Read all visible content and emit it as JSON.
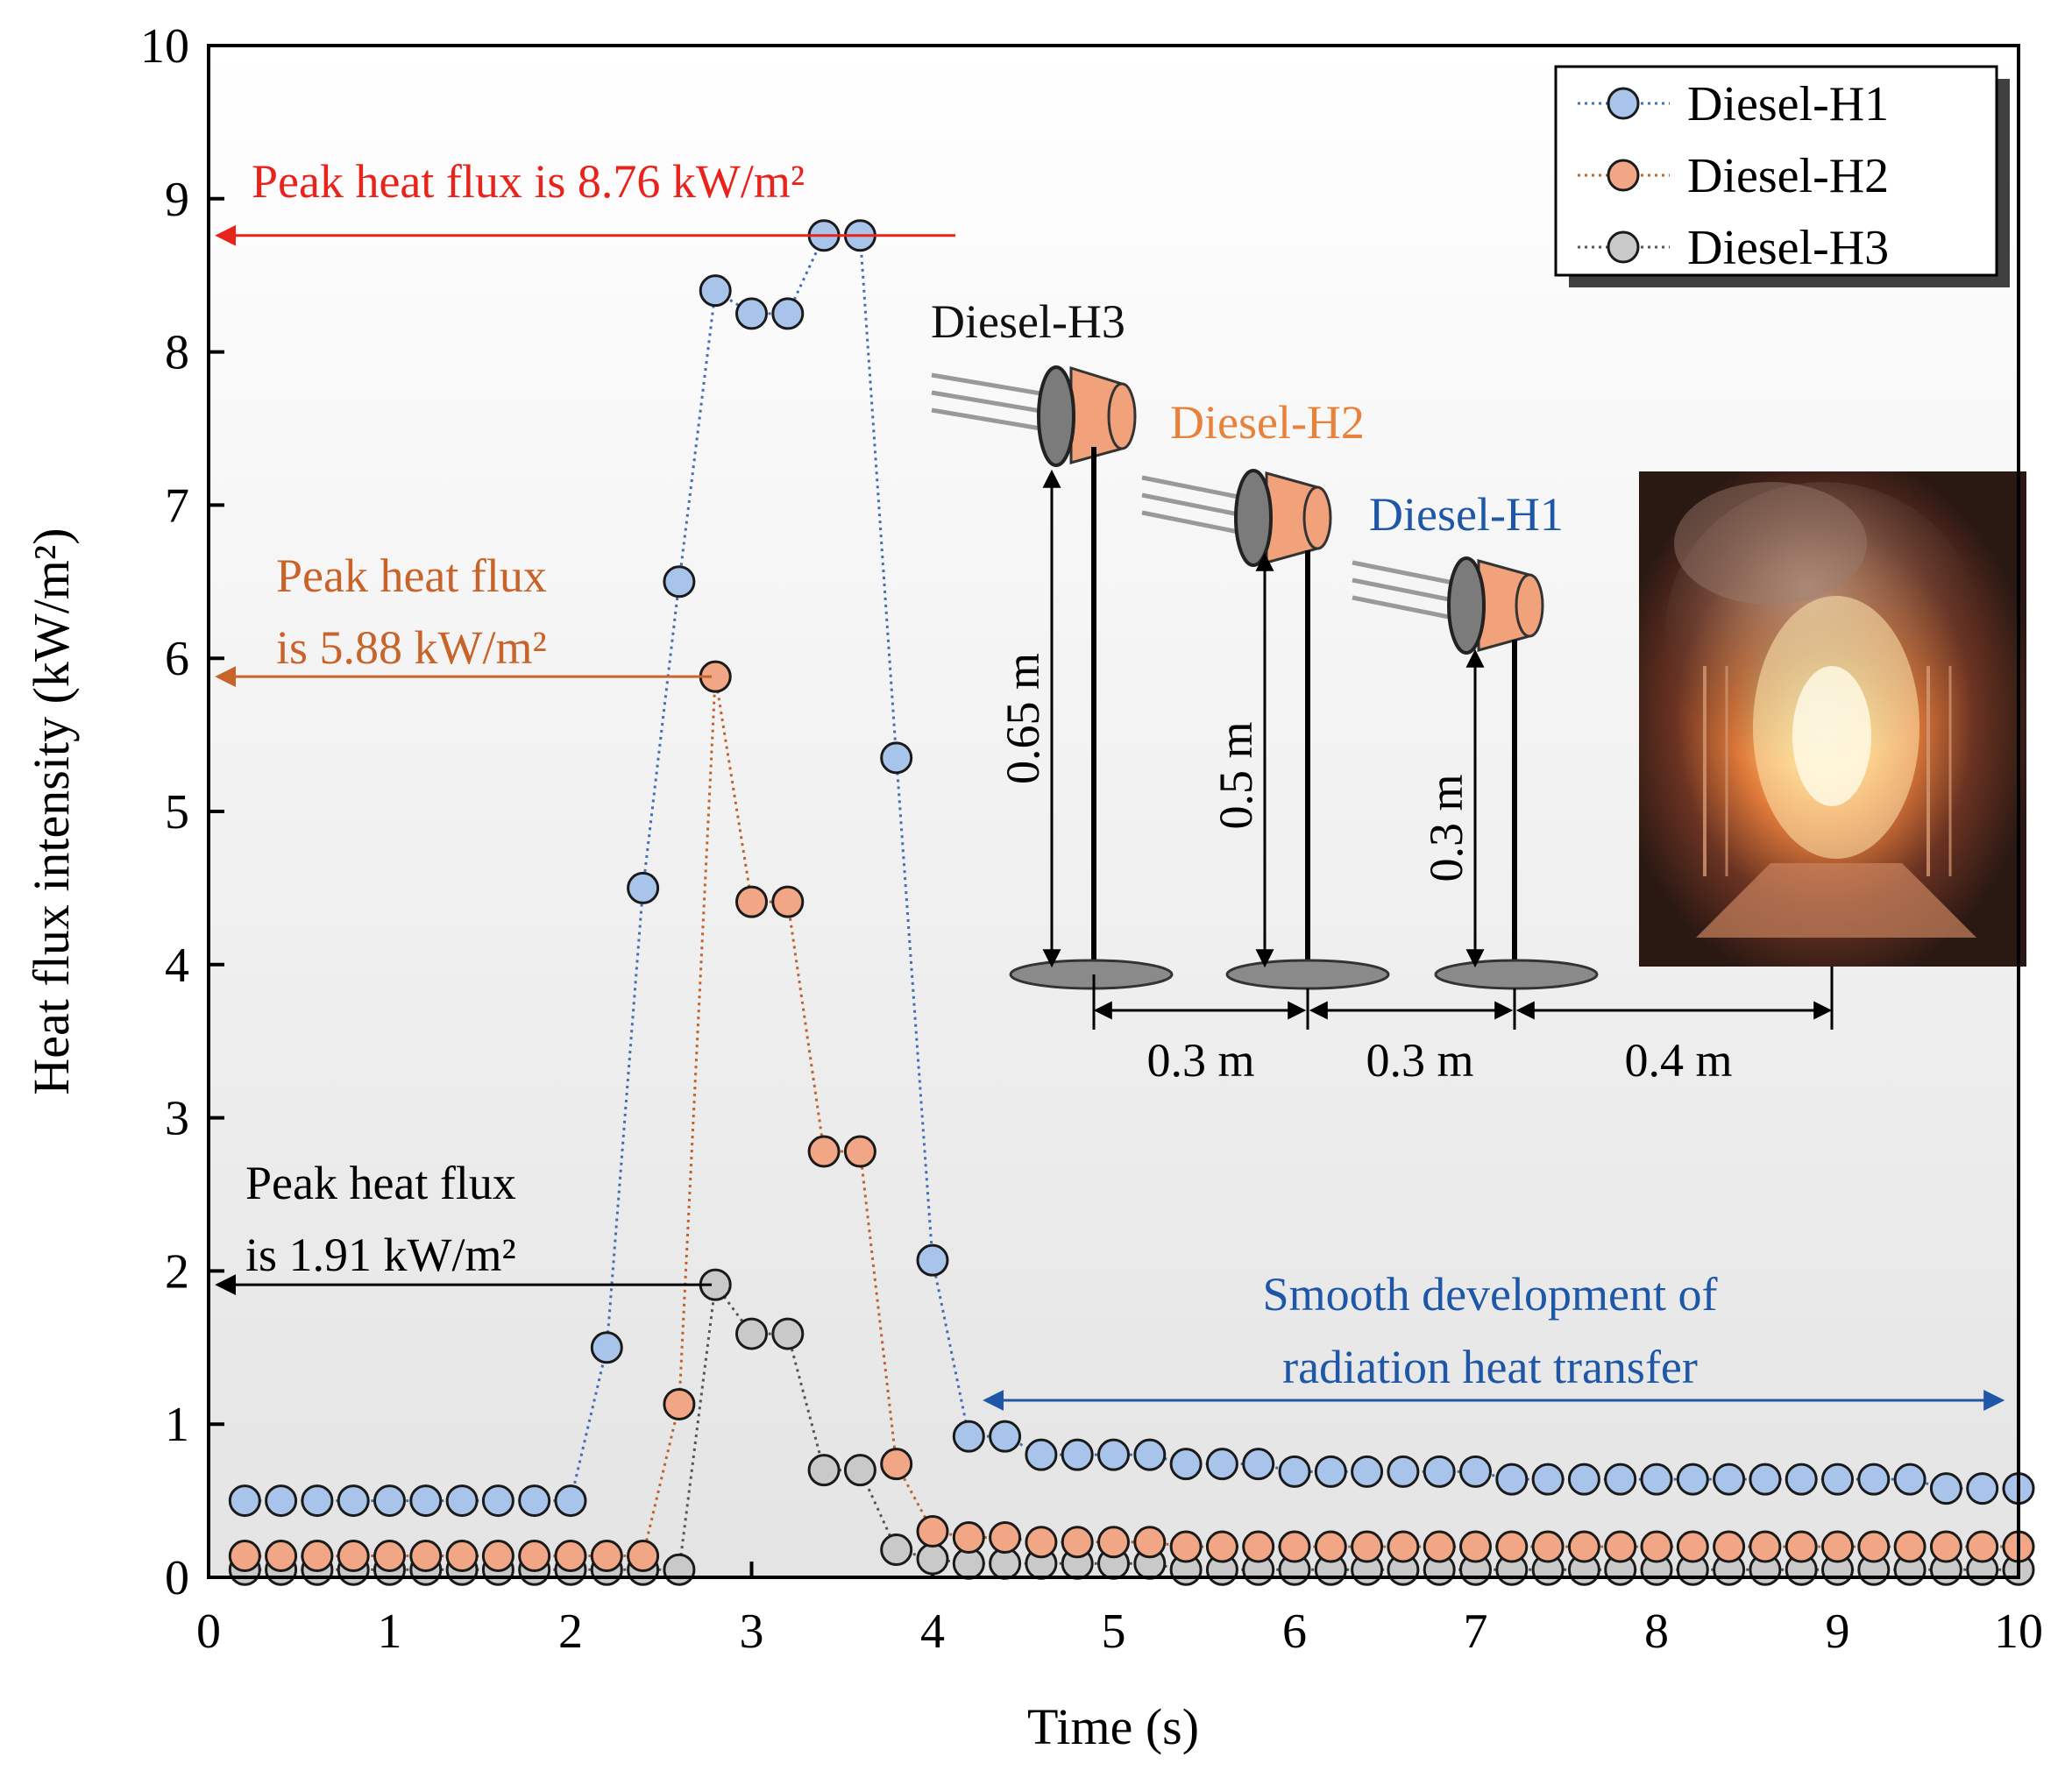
{
  "chart_data": {
    "type": "scatter",
    "xlabel": "Time (s)",
    "ylabel": "Heat flux intensity (kW/m²)",
    "xlim": [
      0,
      10
    ],
    "ylim": [
      0,
      10
    ],
    "xticks": [
      "0",
      "1",
      "2",
      "3",
      "4",
      "5",
      "6",
      "7",
      "8",
      "9",
      "10"
    ],
    "yticks": [
      "0",
      "1",
      "2",
      "3",
      "4",
      "5",
      "6",
      "7",
      "8",
      "9",
      "10"
    ],
    "legend_position": "top-right",
    "x": [
      0.2,
      0.4,
      0.6,
      0.8,
      1.0,
      1.2,
      1.4,
      1.6,
      1.8,
      2.0,
      2.2,
      2.4,
      2.6,
      2.8,
      3.0,
      3.2,
      3.4,
      3.6,
      3.8,
      4.0,
      4.2,
      4.4,
      4.6,
      4.8,
      5.0,
      5.2,
      5.4,
      5.6,
      5.8,
      6.0,
      6.2,
      6.4,
      6.6,
      6.8,
      7.0,
      7.2,
      7.4,
      7.6,
      7.8,
      8.0,
      8.2,
      8.4,
      8.6,
      8.8,
      9.0,
      9.2,
      9.4,
      9.6,
      9.8,
      10.0
    ],
    "series": [
      {
        "name": "Diesel-H1",
        "color": "#a9c4ea",
        "line_color": "#3f6fb5",
        "values": [
          0.5,
          0.5,
          0.5,
          0.5,
          0.5,
          0.5,
          0.5,
          0.5,
          0.5,
          0.5,
          1.5,
          4.5,
          6.5,
          8.4,
          8.25,
          8.25,
          8.76,
          8.76,
          5.35,
          2.07,
          0.92,
          0.92,
          0.8,
          0.8,
          0.8,
          0.8,
          0.74,
          0.74,
          0.74,
          0.69,
          0.69,
          0.69,
          0.69,
          0.69,
          0.69,
          0.64,
          0.64,
          0.64,
          0.64,
          0.64,
          0.64,
          0.64,
          0.64,
          0.64,
          0.64,
          0.64,
          0.64,
          0.58,
          0.58,
          0.58
        ]
      },
      {
        "name": "Diesel-H2",
        "color": "#f1a785",
        "line_color": "#c0622b",
        "values": [
          0.14,
          0.14,
          0.14,
          0.14,
          0.14,
          0.14,
          0.14,
          0.14,
          0.14,
          0.14,
          0.14,
          0.14,
          1.13,
          5.88,
          4.41,
          4.41,
          2.78,
          2.78,
          0.74,
          0.3,
          0.26,
          0.26,
          0.23,
          0.23,
          0.23,
          0.23,
          0.2,
          0.2,
          0.2,
          0.2,
          0.2,
          0.2,
          0.2,
          0.2,
          0.2,
          0.2,
          0.2,
          0.2,
          0.2,
          0.2,
          0.2,
          0.2,
          0.2,
          0.2,
          0.2,
          0.2,
          0.2,
          0.2,
          0.2,
          0.2
        ]
      },
      {
        "name": "Diesel-H3",
        "color": "#c9c9c9",
        "line_color": "#555555",
        "values": [
          0.05,
          0.05,
          0.05,
          0.05,
          0.05,
          0.05,
          0.05,
          0.05,
          0.05,
          0.05,
          0.05,
          0.05,
          0.05,
          1.91,
          1.59,
          1.59,
          0.7,
          0.7,
          0.18,
          0.12,
          0.09,
          0.09,
          0.09,
          0.09,
          0.09,
          0.09,
          0.05,
          0.05,
          0.05,
          0.05,
          0.05,
          0.05,
          0.05,
          0.05,
          0.05,
          0.05,
          0.05,
          0.05,
          0.05,
          0.05,
          0.05,
          0.05,
          0.05,
          0.05,
          0.05,
          0.05,
          0.05,
          0.05,
          0.05,
          0.05
        ]
      }
    ],
    "annotations": {
      "peak_h1": {
        "text": "Peak heat flux is 8.76 kW/m²",
        "value": 8.76,
        "color": "#e8231c"
      },
      "peak_h2_line1": "Peak heat flux",
      "peak_h2_line2": "is 5.88 kW/m²",
      "peak_h2_value": 5.88,
      "peak_h2_color": "#c8642a",
      "peak_h3_line1": "Peak heat flux",
      "peak_h3_line2": "is 1.91 kW/m²",
      "peak_h3_value": 1.91,
      "smooth_line1": "Smooth development of",
      "smooth_line2": "radiation heat transfer",
      "smooth_color": "#1e57a8",
      "smooth_range": [
        4.3,
        9.9
      ]
    },
    "inset": {
      "label_h3": "Diesel-H3",
      "label_h2": "Diesel-H2",
      "label_h1": "Diesel-H1",
      "label_h2_color": "#e8823a",
      "label_h1_color": "#1e57a8",
      "height_h3": "0.65 m",
      "height_h2": "0.5 m",
      "height_h1": "0.3 m",
      "spacing_1": "0.3 m",
      "spacing_2": "0.3 m",
      "spacing_3": "0.4 m"
    }
  }
}
